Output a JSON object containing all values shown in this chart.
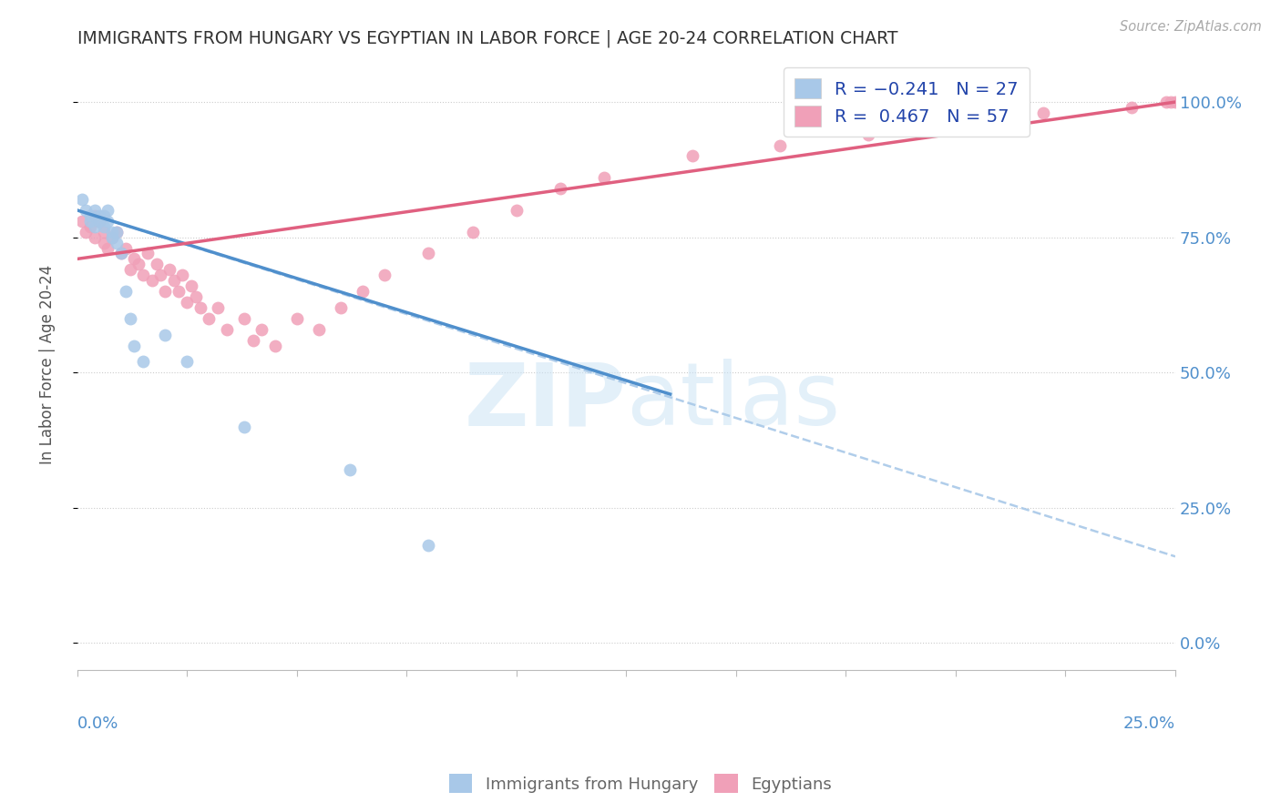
{
  "title": "IMMIGRANTS FROM HUNGARY VS EGYPTIAN IN LABOR FORCE | AGE 20-24 CORRELATION CHART",
  "source": "Source: ZipAtlas.com",
  "ylabel": "In Labor Force | Age 20-24",
  "yticks_labels": [
    "0.0%",
    "25.0%",
    "50.0%",
    "75.0%",
    "100.0%"
  ],
  "ytick_vals": [
    0.0,
    0.25,
    0.5,
    0.75,
    1.0
  ],
  "xrange": [
    0.0,
    0.25
  ],
  "yrange": [
    -0.05,
    1.08
  ],
  "color_hungary": "#a8c8e8",
  "color_egypt": "#f0a0b8",
  "color_hungary_line": "#4f8fcc",
  "color_egypt_line": "#e06080",
  "color_dashed_line": "#a8c8e8",
  "hungary_scatter_x": [
    0.001,
    0.002,
    0.003,
    0.003,
    0.004,
    0.004,
    0.005,
    0.005,
    0.006,
    0.006,
    0.007,
    0.007,
    0.008,
    0.008,
    0.009,
    0.009,
    0.01,
    0.011,
    0.012,
    0.013,
    0.015,
    0.02,
    0.025,
    0.038,
    0.062,
    0.08
  ],
  "hungary_scatter_y": [
    0.82,
    0.8,
    0.79,
    0.78,
    0.8,
    0.77,
    0.79,
    0.78,
    0.79,
    0.77,
    0.8,
    0.78,
    0.76,
    0.75,
    0.76,
    0.74,
    0.72,
    0.65,
    0.6,
    0.55,
    0.52,
    0.57,
    0.52,
    0.4,
    0.32,
    0.18
  ],
  "egypt_scatter_x": [
    0.001,
    0.002,
    0.003,
    0.004,
    0.004,
    0.005,
    0.006,
    0.006,
    0.007,
    0.008,
    0.009,
    0.01,
    0.011,
    0.012,
    0.013,
    0.014,
    0.015,
    0.016,
    0.017,
    0.018,
    0.019,
    0.02,
    0.021,
    0.022,
    0.023,
    0.024,
    0.025,
    0.026,
    0.027,
    0.028,
    0.03,
    0.032,
    0.034,
    0.038,
    0.04,
    0.042,
    0.045,
    0.05,
    0.055,
    0.06,
    0.065,
    0.07,
    0.08,
    0.09,
    0.1,
    0.11,
    0.12,
    0.14,
    0.16,
    0.18,
    0.2,
    0.22,
    0.24,
    0.248,
    0.249,
    0.25
  ],
  "egypt_scatter_y": [
    0.78,
    0.76,
    0.77,
    0.75,
    0.79,
    0.78,
    0.74,
    0.76,
    0.73,
    0.75,
    0.76,
    0.72,
    0.73,
    0.69,
    0.71,
    0.7,
    0.68,
    0.72,
    0.67,
    0.7,
    0.68,
    0.65,
    0.69,
    0.67,
    0.65,
    0.68,
    0.63,
    0.66,
    0.64,
    0.62,
    0.6,
    0.62,
    0.58,
    0.6,
    0.56,
    0.58,
    0.55,
    0.6,
    0.58,
    0.62,
    0.65,
    0.68,
    0.72,
    0.76,
    0.8,
    0.84,
    0.86,
    0.9,
    0.92,
    0.94,
    0.96,
    0.98,
    0.99,
    1.0,
    1.0,
    1.0
  ],
  "hungary_line_x0": 0.0,
  "hungary_line_x1": 0.135,
  "hungary_line_y0": 0.8,
  "hungary_line_y1": 0.46,
  "egypt_line_x0": 0.0,
  "egypt_line_x1": 0.25,
  "egypt_line_y0": 0.71,
  "egypt_line_y1": 1.0,
  "dashed_line_x0": 0.0,
  "dashed_line_x1": 0.25,
  "dashed_line_y0": 0.8,
  "dashed_line_y1": 0.16
}
